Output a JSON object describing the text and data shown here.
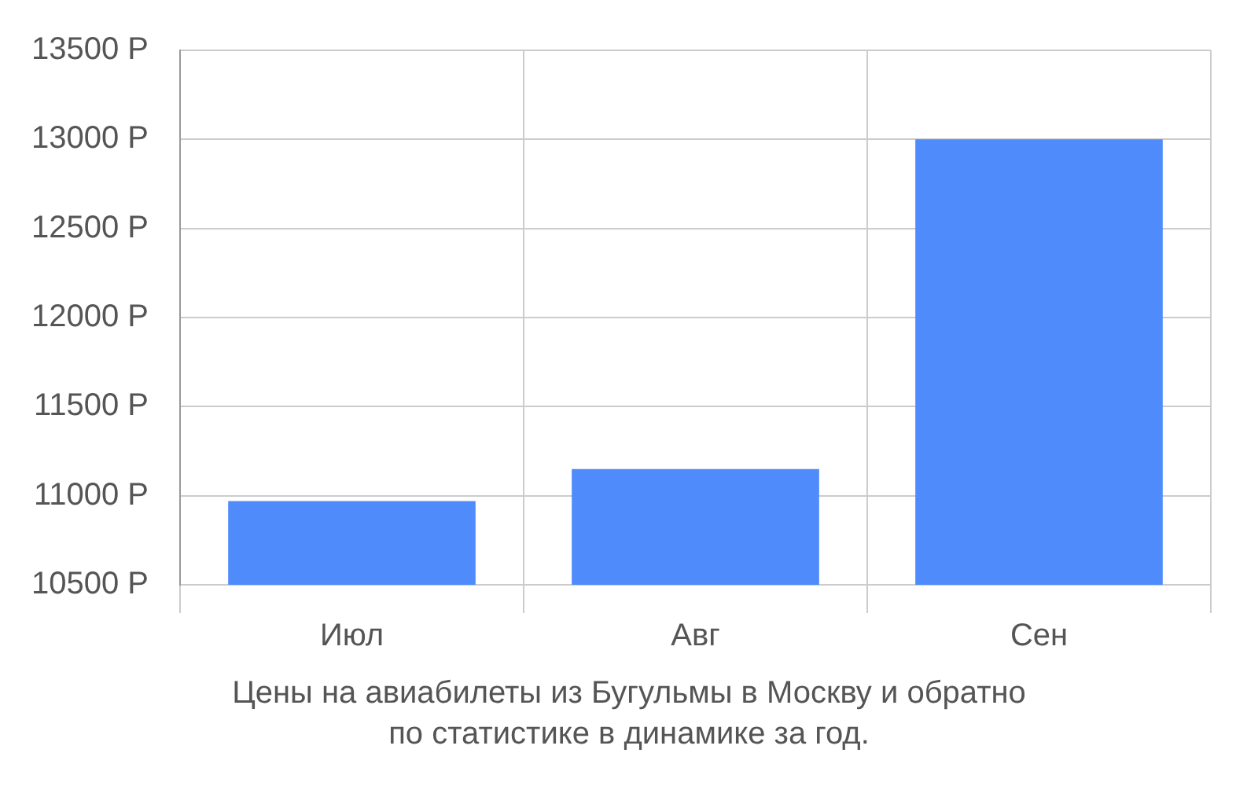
{
  "chart_data": {
    "type": "bar",
    "categories": [
      "Июл",
      "Авг",
      "Сен"
    ],
    "values": [
      10970,
      11150,
      13000
    ],
    "color": "#4f8bfa",
    "ylim": [
      10500,
      13500
    ],
    "yticks": [
      {
        "value": 10500,
        "label": "10500 Р"
      },
      {
        "value": 11000,
        "label": "11000 Р"
      },
      {
        "value": 11500,
        "label": "11500 Р"
      },
      {
        "value": 12000,
        "label": "12000 Р"
      },
      {
        "value": 12500,
        "label": "12500 Р"
      },
      {
        "value": 13000,
        "label": "13000 Р"
      },
      {
        "value": 13500,
        "label": "13500 Р"
      }
    ],
    "grid": true,
    "annotations": [
      "Цены на авиабилеты из Бугульмы в Москву и обратно",
      "по статистике в динамике за год."
    ]
  }
}
